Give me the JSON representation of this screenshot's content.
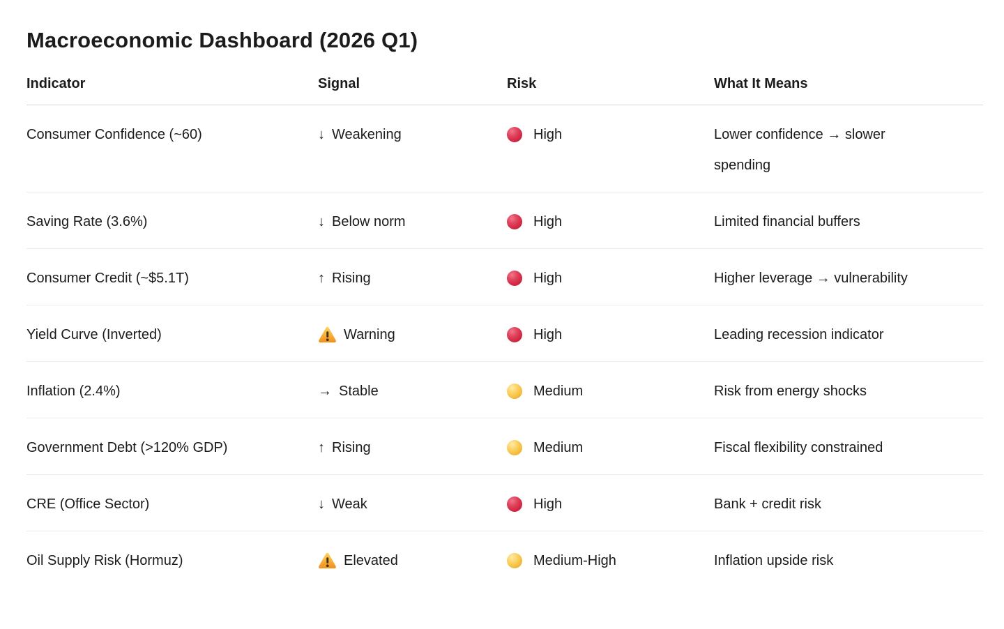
{
  "page_title": "Macroeconomic Dashboard (2026 Q1)",
  "table": {
    "columns": [
      "Indicator",
      "Signal",
      "Risk",
      "What It Means"
    ],
    "rows": [
      {
        "indicator": "Consumer Confidence (~60)",
        "signal_icon": "down-arrow-icon",
        "signal_glyph": "↓",
        "signal": "Weakening",
        "risk_level": "high",
        "risk": "High",
        "meaning": "Lower confidence → slower spending"
      },
      {
        "indicator": "Saving Rate (3.6%)",
        "signal_icon": "down-arrow-icon",
        "signal_glyph": "↓",
        "signal": "Below norm",
        "risk_level": "high",
        "risk": "High",
        "meaning": "Limited financial buffers"
      },
      {
        "indicator": "Consumer Credit (~$5.1T)",
        "signal_icon": "up-arrow-icon",
        "signal_glyph": "↑",
        "signal": "Rising",
        "risk_level": "high",
        "risk": "High",
        "meaning": "Higher leverage → vulnerability"
      },
      {
        "indicator": "Yield Curve (Inverted)",
        "signal_icon": "warning-triangle-icon",
        "signal_glyph": "⚠",
        "signal": "Warning",
        "risk_level": "high",
        "risk": "High",
        "meaning": "Leading recession indicator"
      },
      {
        "indicator": "Inflation (2.4%)",
        "signal_icon": "right-arrow-icon",
        "signal_glyph": "→",
        "signal": "Stable",
        "risk_level": "medium",
        "risk": "Medium",
        "meaning": "Risk from energy shocks"
      },
      {
        "indicator": "Government Debt (>120% GDP)",
        "signal_icon": "up-arrow-icon",
        "signal_glyph": "↑",
        "signal": "Rising",
        "risk_level": "medium",
        "risk": "Medium",
        "meaning": "Fiscal flexibility constrained"
      },
      {
        "indicator": "CRE (Office Sector)",
        "signal_icon": "down-arrow-icon",
        "signal_glyph": "↓",
        "signal": "Weak",
        "risk_level": "high",
        "risk": "High",
        "meaning": "Bank + credit risk"
      },
      {
        "indicator": "Oil Supply Risk (Hormuz)",
        "signal_icon": "warning-triangle-icon",
        "signal_glyph": "⚠",
        "signal": "Elevated",
        "risk_level": "medium-high",
        "risk": "Medium-High",
        "meaning": "Inflation upside risk"
      }
    ]
  },
  "colors": {
    "risk_high_dot": "#dd2e44",
    "risk_medium_dot": "#fbd160",
    "warning_triangle": "#f5a623",
    "text": "#1b1b1b",
    "header_divider": "#d7d7d7",
    "row_divider": "#ececec"
  }
}
